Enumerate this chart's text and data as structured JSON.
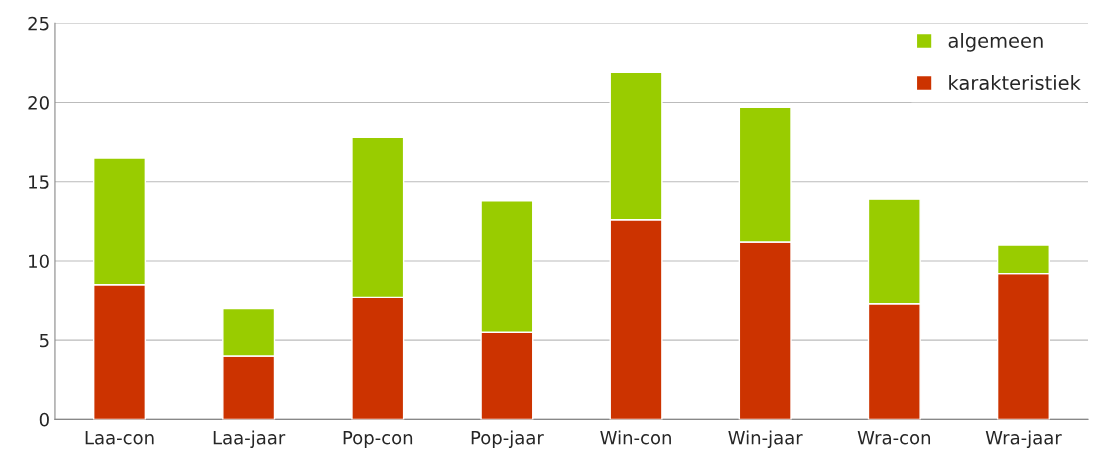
{
  "chart_data": {
    "type": "bar",
    "stacked": true,
    "categories": [
      "Laa-con",
      "Laa-jaar",
      "Pop-con",
      "Pop-jaar",
      "Win-con",
      "Win-jaar",
      "Wra-con",
      "Wra-jaar"
    ],
    "series": [
      {
        "name": "karakteristiek",
        "color": "#cc3300",
        "values": [
          8.5,
          4.0,
          7.7,
          5.5,
          12.6,
          11.2,
          7.3,
          9.2
        ]
      },
      {
        "name": "algemeen",
        "color": "#99cc00",
        "values": [
          8.0,
          3.0,
          10.1,
          8.3,
          9.3,
          8.5,
          6.6,
          1.8
        ]
      }
    ],
    "ylim": [
      0,
      25
    ],
    "yticks": [
      0,
      5,
      10,
      15,
      20,
      25
    ],
    "grid": "y",
    "legend": "top right"
  }
}
